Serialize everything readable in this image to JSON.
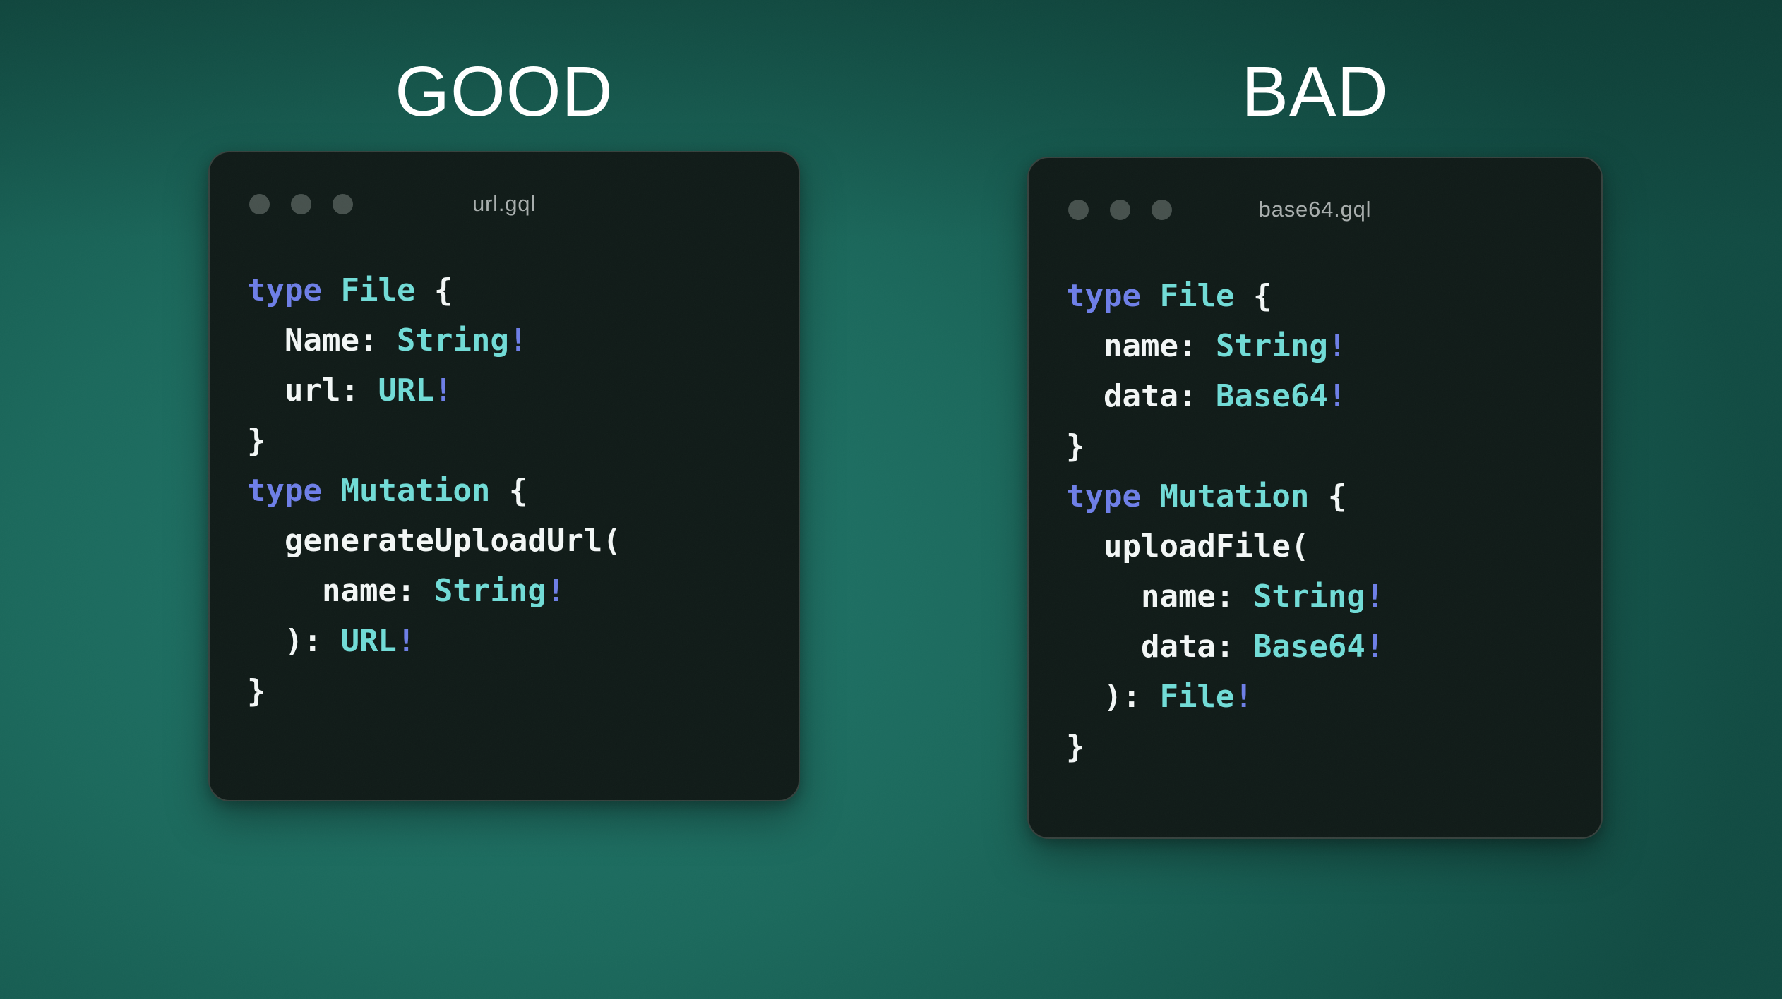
{
  "colors": {
    "heading": "#ffffff",
    "window_bg": "#0c1714",
    "window_border": "#333e3a",
    "traffic_dot": "#434e4a",
    "filename": "#a6acab",
    "plain": "#f2f6f5",
    "keyword": "#6b7ce6",
    "typename": "#6edad5",
    "bang": "#6b7ce6",
    "background": "#156458"
  },
  "panels": [
    {
      "heading": "GOOD",
      "window": {
        "filename": "url.gql",
        "code_lines": [
          [
            {
              "t": "kw",
              "s": "type"
            },
            {
              "t": "plain",
              "s": " "
            },
            {
              "t": "type",
              "s": "File"
            },
            {
              "t": "plain",
              "s": " {"
            }
          ],
          [
            {
              "t": "plain",
              "s": "  Name: "
            },
            {
              "t": "type",
              "s": "String"
            },
            {
              "t": "bang",
              "s": "!"
            }
          ],
          [
            {
              "t": "plain",
              "s": "  url: "
            },
            {
              "t": "type",
              "s": "URL"
            },
            {
              "t": "bang",
              "s": "!"
            }
          ],
          [
            {
              "t": "plain",
              "s": "}"
            }
          ],
          [
            {
              "t": "kw",
              "s": "type"
            },
            {
              "t": "plain",
              "s": " "
            },
            {
              "t": "type",
              "s": "Mutation"
            },
            {
              "t": "plain",
              "s": " {"
            }
          ],
          [
            {
              "t": "plain",
              "s": "  generateUploadUrl("
            }
          ],
          [
            {
              "t": "plain",
              "s": "    name: "
            },
            {
              "t": "type",
              "s": "String"
            },
            {
              "t": "bang",
              "s": "!"
            }
          ],
          [
            {
              "t": "plain",
              "s": "  ): "
            },
            {
              "t": "type",
              "s": "URL"
            },
            {
              "t": "bang",
              "s": "!"
            }
          ],
          [
            {
              "t": "plain",
              "s": "}"
            }
          ]
        ]
      }
    },
    {
      "heading": "BAD",
      "window": {
        "filename": "base64.gql",
        "code_lines": [
          [
            {
              "t": "kw",
              "s": "type"
            },
            {
              "t": "plain",
              "s": " "
            },
            {
              "t": "type",
              "s": "File"
            },
            {
              "t": "plain",
              "s": " {"
            }
          ],
          [
            {
              "t": "plain",
              "s": "  name: "
            },
            {
              "t": "type",
              "s": "String"
            },
            {
              "t": "bang",
              "s": "!"
            }
          ],
          [
            {
              "t": "plain",
              "s": "  data: "
            },
            {
              "t": "type",
              "s": "Base64"
            },
            {
              "t": "bang",
              "s": "!"
            }
          ],
          [
            {
              "t": "plain",
              "s": "}"
            }
          ],
          [
            {
              "t": "kw",
              "s": "type"
            },
            {
              "t": "plain",
              "s": " "
            },
            {
              "t": "type",
              "s": "Mutation"
            },
            {
              "t": "plain",
              "s": " {"
            }
          ],
          [
            {
              "t": "plain",
              "s": "  uploadFile("
            }
          ],
          [
            {
              "t": "plain",
              "s": "    name: "
            },
            {
              "t": "type",
              "s": "String"
            },
            {
              "t": "bang",
              "s": "!"
            }
          ],
          [
            {
              "t": "plain",
              "s": "    data: "
            },
            {
              "t": "type",
              "s": "Base64"
            },
            {
              "t": "bang",
              "s": "!"
            }
          ],
          [
            {
              "t": "plain",
              "s": "  ): "
            },
            {
              "t": "type",
              "s": "File"
            },
            {
              "t": "bang",
              "s": "!"
            }
          ],
          [
            {
              "t": "plain",
              "s": "}"
            }
          ]
        ]
      }
    }
  ]
}
